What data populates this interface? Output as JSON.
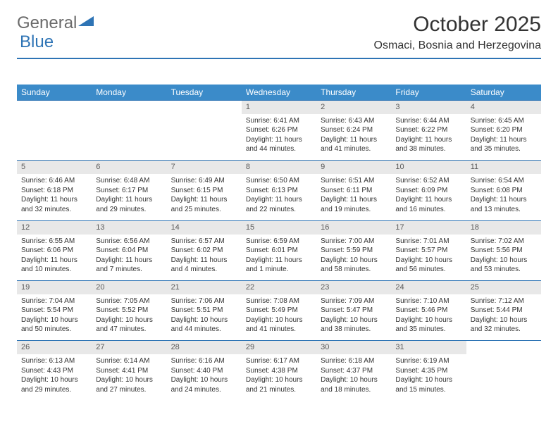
{
  "brand": {
    "word1": "General",
    "word2": "Blue"
  },
  "title": "October 2025",
  "location": "Osmaci, Bosnia and Herzegovina",
  "colors": {
    "header_bg": "#3b8bc9",
    "accent": "#2e74b5",
    "daynum_bg": "#e8e8e8",
    "text": "#333333",
    "logo_gray": "#6b6b6b"
  },
  "weekdays": [
    "Sunday",
    "Monday",
    "Tuesday",
    "Wednesday",
    "Thursday",
    "Friday",
    "Saturday"
  ],
  "weeks": [
    [
      null,
      null,
      null,
      {
        "n": "1",
        "sr": "6:41 AM",
        "ss": "6:26 PM",
        "dl": "11 hours and 44 minutes."
      },
      {
        "n": "2",
        "sr": "6:43 AM",
        "ss": "6:24 PM",
        "dl": "11 hours and 41 minutes."
      },
      {
        "n": "3",
        "sr": "6:44 AM",
        "ss": "6:22 PM",
        "dl": "11 hours and 38 minutes."
      },
      {
        "n": "4",
        "sr": "6:45 AM",
        "ss": "6:20 PM",
        "dl": "11 hours and 35 minutes."
      }
    ],
    [
      {
        "n": "5",
        "sr": "6:46 AM",
        "ss": "6:18 PM",
        "dl": "11 hours and 32 minutes."
      },
      {
        "n": "6",
        "sr": "6:48 AM",
        "ss": "6:17 PM",
        "dl": "11 hours and 29 minutes."
      },
      {
        "n": "7",
        "sr": "6:49 AM",
        "ss": "6:15 PM",
        "dl": "11 hours and 25 minutes."
      },
      {
        "n": "8",
        "sr": "6:50 AM",
        "ss": "6:13 PM",
        "dl": "11 hours and 22 minutes."
      },
      {
        "n": "9",
        "sr": "6:51 AM",
        "ss": "6:11 PM",
        "dl": "11 hours and 19 minutes."
      },
      {
        "n": "10",
        "sr": "6:52 AM",
        "ss": "6:09 PM",
        "dl": "11 hours and 16 minutes."
      },
      {
        "n": "11",
        "sr": "6:54 AM",
        "ss": "6:08 PM",
        "dl": "11 hours and 13 minutes."
      }
    ],
    [
      {
        "n": "12",
        "sr": "6:55 AM",
        "ss": "6:06 PM",
        "dl": "11 hours and 10 minutes."
      },
      {
        "n": "13",
        "sr": "6:56 AM",
        "ss": "6:04 PM",
        "dl": "11 hours and 7 minutes."
      },
      {
        "n": "14",
        "sr": "6:57 AM",
        "ss": "6:02 PM",
        "dl": "11 hours and 4 minutes."
      },
      {
        "n": "15",
        "sr": "6:59 AM",
        "ss": "6:01 PM",
        "dl": "11 hours and 1 minute."
      },
      {
        "n": "16",
        "sr": "7:00 AM",
        "ss": "5:59 PM",
        "dl": "10 hours and 58 minutes."
      },
      {
        "n": "17",
        "sr": "7:01 AM",
        "ss": "5:57 PM",
        "dl": "10 hours and 56 minutes."
      },
      {
        "n": "18",
        "sr": "7:02 AM",
        "ss": "5:56 PM",
        "dl": "10 hours and 53 minutes."
      }
    ],
    [
      {
        "n": "19",
        "sr": "7:04 AM",
        "ss": "5:54 PM",
        "dl": "10 hours and 50 minutes."
      },
      {
        "n": "20",
        "sr": "7:05 AM",
        "ss": "5:52 PM",
        "dl": "10 hours and 47 minutes."
      },
      {
        "n": "21",
        "sr": "7:06 AM",
        "ss": "5:51 PM",
        "dl": "10 hours and 44 minutes."
      },
      {
        "n": "22",
        "sr": "7:08 AM",
        "ss": "5:49 PM",
        "dl": "10 hours and 41 minutes."
      },
      {
        "n": "23",
        "sr": "7:09 AM",
        "ss": "5:47 PM",
        "dl": "10 hours and 38 minutes."
      },
      {
        "n": "24",
        "sr": "7:10 AM",
        "ss": "5:46 PM",
        "dl": "10 hours and 35 minutes."
      },
      {
        "n": "25",
        "sr": "7:12 AM",
        "ss": "5:44 PM",
        "dl": "10 hours and 32 minutes."
      }
    ],
    [
      {
        "n": "26",
        "sr": "6:13 AM",
        "ss": "4:43 PM",
        "dl": "10 hours and 29 minutes."
      },
      {
        "n": "27",
        "sr": "6:14 AM",
        "ss": "4:41 PM",
        "dl": "10 hours and 27 minutes."
      },
      {
        "n": "28",
        "sr": "6:16 AM",
        "ss": "4:40 PM",
        "dl": "10 hours and 24 minutes."
      },
      {
        "n": "29",
        "sr": "6:17 AM",
        "ss": "4:38 PM",
        "dl": "10 hours and 21 minutes."
      },
      {
        "n": "30",
        "sr": "6:18 AM",
        "ss": "4:37 PM",
        "dl": "10 hours and 18 minutes."
      },
      {
        "n": "31",
        "sr": "6:19 AM",
        "ss": "4:35 PM",
        "dl": "10 hours and 15 minutes."
      },
      null
    ]
  ],
  "labels": {
    "sunrise": "Sunrise:",
    "sunset": "Sunset:",
    "daylight": "Daylight:"
  }
}
